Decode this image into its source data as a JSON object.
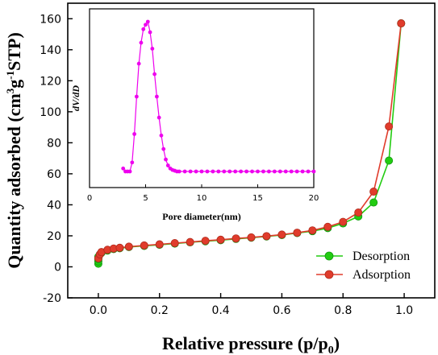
{
  "chart_data": [
    {
      "type": "line",
      "xlabel": "Relative pressure (p/p0)",
      "xlabel_main": "Relative pressure (p/p",
      "xlabel_sub": "0",
      "xlabel_tail": ")",
      "ylabel": "Quantity adsorbed (cm3g-1STP)",
      "ylabel_main": "Quantity adsorbed (cm",
      "ylabel_sup1": "3",
      "ylabel_mid": "g",
      "ylabel_sup2": "-1",
      "ylabel_tail": "STP)",
      "xlim": [
        -0.1,
        1.1
      ],
      "ylim": [
        -20,
        170
      ],
      "xticks": [
        "0.0",
        "0.2",
        "0.4",
        "0.6",
        "0.8",
        "1.0"
      ],
      "yticks": [
        "-20",
        "0",
        "20",
        "40",
        "60",
        "80",
        "100",
        "120",
        "140",
        "160"
      ],
      "legend_position": "bottom-right",
      "series": [
        {
          "name": "Desorption",
          "color": "#22cc11",
          "x": [
            0.0,
            0.0,
            0.0,
            0.0,
            0.005,
            0.01,
            0.03,
            0.05,
            0.07,
            0.1,
            0.15,
            0.2,
            0.25,
            0.3,
            0.35,
            0.4,
            0.45,
            0.5,
            0.55,
            0.6,
            0.65,
            0.7,
            0.75,
            0.8,
            0.85,
            0.9,
            0.95,
            0.99
          ],
          "y": [
            2.0,
            3.5,
            5.0,
            6.5,
            8.0,
            9.0,
            10.5,
            11.5,
            12.0,
            12.8,
            13.5,
            14.2,
            15.0,
            15.8,
            16.5,
            17.2,
            18.0,
            18.8,
            19.6,
            20.5,
            21.8,
            23.0,
            25.0,
            28.0,
            32.5,
            41.5,
            68.5,
            157.0
          ]
        },
        {
          "name": "Adsorption",
          "color": "#e03c2c",
          "x": [
            0.0,
            0.005,
            0.01,
            0.03,
            0.05,
            0.07,
            0.1,
            0.15,
            0.2,
            0.25,
            0.3,
            0.35,
            0.4,
            0.45,
            0.5,
            0.55,
            0.6,
            0.65,
            0.7,
            0.75,
            0.8,
            0.85,
            0.9,
            0.95,
            0.99
          ],
          "y": [
            5.5,
            8.0,
            9.5,
            11.0,
            11.8,
            12.3,
            13.0,
            13.8,
            14.5,
            15.3,
            16.0,
            16.8,
            17.5,
            18.3,
            19.0,
            19.8,
            20.8,
            22.0,
            23.5,
            25.8,
            29.0,
            35.0,
            48.5,
            90.5,
            157.0
          ]
        }
      ]
    },
    {
      "type": "line",
      "xlabel": "Pore diameter(nm)",
      "ylabel": "dV/dD",
      "xlim": [
        0,
        20
      ],
      "ylim": [
        0,
        1
      ],
      "xticks": [
        "0",
        "5",
        "10",
        "15",
        "20"
      ],
      "series": [
        {
          "color": "#ee00ee",
          "x": [
            3.0,
            3.2,
            3.4,
            3.6,
            3.8,
            4.0,
            4.2,
            4.4,
            4.6,
            4.8,
            5.0,
            5.2,
            5.4,
            5.6,
            5.8,
            6.0,
            6.2,
            6.4,
            6.6,
            6.8,
            7.0,
            7.2,
            7.4,
            7.6,
            7.8,
            8.0,
            8.5,
            9.0,
            9.5,
            10.0,
            10.5,
            11.0,
            11.5,
            12.0,
            12.5,
            13.0,
            13.5,
            14.0,
            14.5,
            15.0,
            15.5,
            16.0,
            16.5,
            17.0,
            17.5,
            18.0,
            18.5,
            19.0,
            19.5,
            20.0
          ],
          "y": [
            0.02,
            0.0,
            0.0,
            0.0,
            0.06,
            0.25,
            0.5,
            0.72,
            0.86,
            0.95,
            0.98,
            1.0,
            0.93,
            0.82,
            0.65,
            0.5,
            0.36,
            0.24,
            0.15,
            0.08,
            0.04,
            0.02,
            0.01,
            0.005,
            0.0,
            0.0,
            0.0,
            0.0,
            0.0,
            0.0,
            0.0,
            0.0,
            0.0,
            0.0,
            0.0,
            0.0,
            0.0,
            0.0,
            0.0,
            0.0,
            0.0,
            0.0,
            0.0,
            0.0,
            0.0,
            0.0,
            0.0,
            0.0,
            0.0,
            0.0
          ]
        }
      ]
    }
  ]
}
